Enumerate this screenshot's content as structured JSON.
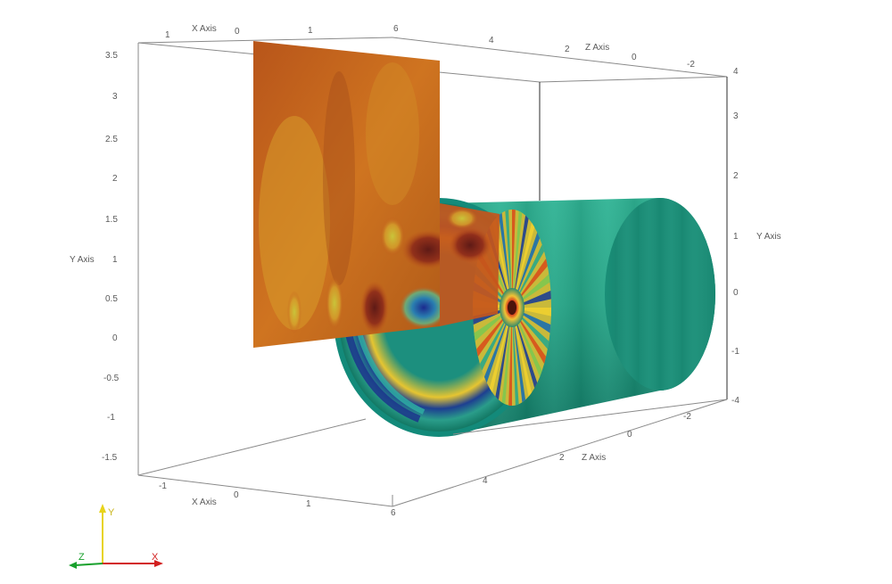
{
  "axes": {
    "x_axis_label": "X Axis",
    "y_axis_label": "Y Axis",
    "z_axis_label": "Z Axis",
    "y_ticks_left": [
      "3.5",
      "3",
      "2.5",
      "2",
      "1.5",
      "1",
      "0.5",
      "0",
      "-0.5",
      "-1",
      "-1.5"
    ],
    "y_ticks_right": [
      "4",
      "3",
      "2",
      "1",
      "0",
      "-1",
      "-4"
    ],
    "x_ticks_top": [
      "1",
      "0",
      "1",
      "6"
    ],
    "z_ticks_top": [
      "4",
      "2",
      "0",
      "-2"
    ],
    "x_ticks_bottom": [
      "-1",
      "0",
      "1",
      "6"
    ],
    "z_ticks_bottom": [
      "-2",
      "0",
      "2",
      "4"
    ]
  },
  "orientation": {
    "y_label": "Y",
    "z_label": "Z",
    "x_label": "X",
    "colors": {
      "x": "#d21f1f",
      "y": "#e8d31a",
      "z": "#18a02c"
    }
  },
  "colors": {
    "slice_base": "#c8671a",
    "cylinder_outer": "#1c9c82",
    "cylinder_inner": "#1f7aa0"
  }
}
